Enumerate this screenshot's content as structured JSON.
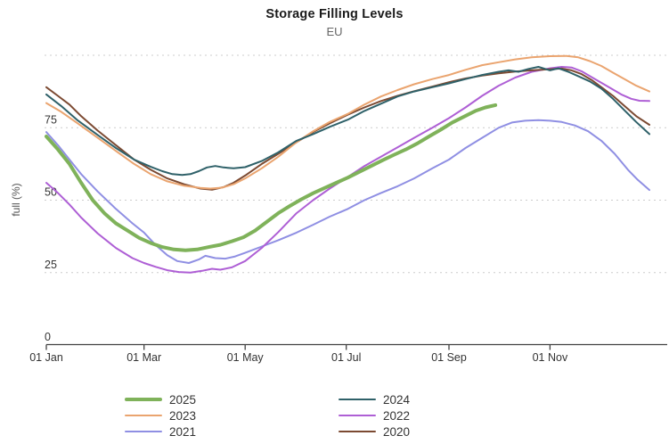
{
  "header": {
    "title": "Storage Filling Levels",
    "subtitle": "EU",
    "menu_icon": "hamburger-menu-icon"
  },
  "colors": {
    "background": "#ffffff",
    "title_text": "#1a1a1a",
    "subtitle_text": "#666666",
    "axis_text": "#333333",
    "axis_line": "#424242",
    "gridline": "#cccccc",
    "menu_icon": "#606060"
  },
  "chart_data": {
    "type": "line",
    "title": "Storage Filling Levels",
    "subtitle": "EU",
    "xlabel": "",
    "ylabel": "full (%)",
    "x_unit": "day_of_year",
    "ylim": [
      0,
      105
    ],
    "yticks": [
      0,
      25,
      50,
      75
    ],
    "gridline_values": [
      25,
      50,
      75,
      100
    ],
    "grid_style": "dotted",
    "xtick_labels": [
      "01 Jan",
      "01 Mar",
      "01 May",
      "01 Jul",
      "01 Sep",
      "01 Nov"
    ],
    "xtick_days": [
      1,
      60,
      121,
      182,
      244,
      305
    ],
    "legend_position": "bottom",
    "legend_columns": [
      [
        "2025",
        "2023",
        "2021"
      ],
      [
        "2024",
        "2022",
        "2020"
      ]
    ],
    "series": [
      {
        "name": "2021",
        "color": "#8f8fe3",
        "line_width": 2,
        "points": [
          [
            1,
            73.5
          ],
          [
            8,
            69
          ],
          [
            15,
            64
          ],
          [
            22,
            59
          ],
          [
            32,
            53
          ],
          [
            43,
            47
          ],
          [
            53,
            42
          ],
          [
            60,
            38.8
          ],
          [
            67,
            34.5
          ],
          [
            74,
            31
          ],
          [
            80,
            29
          ],
          [
            87,
            28.3
          ],
          [
            93,
            29.5
          ],
          [
            97,
            30.8
          ],
          [
            103,
            30
          ],
          [
            109,
            29.8
          ],
          [
            115,
            30.6
          ],
          [
            121,
            31.8
          ],
          [
            131,
            34
          ],
          [
            141,
            36.2
          ],
          [
            152,
            38.8
          ],
          [
            162,
            41.5
          ],
          [
            172,
            44.3
          ],
          [
            183,
            47
          ],
          [
            193,
            50
          ],
          [
            203,
            52.5
          ],
          [
            213,
            54.8
          ],
          [
            223,
            57.5
          ],
          [
            234,
            61
          ],
          [
            244,
            64
          ],
          [
            254,
            68
          ],
          [
            264,
            71.5
          ],
          [
            274,
            75
          ],
          [
            282,
            76.8
          ],
          [
            290,
            77.4
          ],
          [
            298,
            77.6
          ],
          [
            305,
            77.4
          ],
          [
            312,
            77
          ],
          [
            320,
            75.8
          ],
          [
            328,
            73.8
          ],
          [
            336,
            70.5
          ],
          [
            344,
            66
          ],
          [
            352,
            60.5
          ],
          [
            358,
            57
          ],
          [
            365,
            53.5
          ]
        ]
      },
      {
        "name": "2022",
        "color": "#ae5fd5",
        "line_width": 2,
        "points": [
          [
            1,
            56
          ],
          [
            8,
            52.5
          ],
          [
            15,
            48.5
          ],
          [
            22,
            44
          ],
          [
            32,
            38.5
          ],
          [
            43,
            33.5
          ],
          [
            53,
            30
          ],
          [
            60,
            28.3
          ],
          [
            67,
            27
          ],
          [
            74,
            25.8
          ],
          [
            81,
            25.2
          ],
          [
            88,
            25
          ],
          [
            95,
            25.6
          ],
          [
            101,
            26.3
          ],
          [
            106,
            26
          ],
          [
            113,
            26.8
          ],
          [
            121,
            29
          ],
          [
            131,
            33.5
          ],
          [
            141,
            39
          ],
          [
            152,
            45.5
          ],
          [
            162,
            50
          ],
          [
            172,
            54
          ],
          [
            183,
            58
          ],
          [
            193,
            61.8
          ],
          [
            203,
            65
          ],
          [
            213,
            68.2
          ],
          [
            223,
            71.5
          ],
          [
            234,
            75
          ],
          [
            244,
            78.3
          ],
          [
            254,
            82
          ],
          [
            264,
            86
          ],
          [
            274,
            89.5
          ],
          [
            284,
            92.3
          ],
          [
            294,
            94.3
          ],
          [
            305,
            95.5
          ],
          [
            312,
            96
          ],
          [
            318,
            95.8
          ],
          [
            324,
            94.5
          ],
          [
            330,
            92.5
          ],
          [
            336,
            90.5
          ],
          [
            342,
            88.5
          ],
          [
            348,
            86.5
          ],
          [
            354,
            85
          ],
          [
            359,
            84.3
          ],
          [
            365,
            84.2
          ]
        ]
      },
      {
        "name": "2020",
        "color": "#7c4a32",
        "line_width": 2,
        "points": [
          [
            1,
            89
          ],
          [
            8,
            86
          ],
          [
            15,
            83
          ],
          [
            22,
            79
          ],
          [
            32,
            74
          ],
          [
            43,
            69
          ],
          [
            54,
            64
          ],
          [
            64,
            60.5
          ],
          [
            74,
            57.5
          ],
          [
            84,
            55.5
          ],
          [
            94,
            54
          ],
          [
            101,
            53.6
          ],
          [
            108,
            54.5
          ],
          [
            114,
            56
          ],
          [
            121,
            58.5
          ],
          [
            131,
            62.5
          ],
          [
            141,
            66
          ],
          [
            152,
            70
          ],
          [
            162,
            73.5
          ],
          [
            172,
            76.5
          ],
          [
            183,
            79.5
          ],
          [
            193,
            82
          ],
          [
            203,
            84.2
          ],
          [
            213,
            86
          ],
          [
            223,
            87.6
          ],
          [
            234,
            89.2
          ],
          [
            244,
            90.7
          ],
          [
            254,
            92
          ],
          [
            264,
            93
          ],
          [
            274,
            93.8
          ],
          [
            284,
            94.4
          ],
          [
            294,
            94.8
          ],
          [
            305,
            95.2
          ],
          [
            312,
            95.4
          ],
          [
            318,
            94.8
          ],
          [
            324,
            93.5
          ],
          [
            330,
            91.5
          ],
          [
            336,
            89
          ],
          [
            343,
            86
          ],
          [
            350,
            82.5
          ],
          [
            357,
            79
          ],
          [
            365,
            76
          ]
        ]
      },
      {
        "name": "2023",
        "color": "#eaa46f",
        "line_width": 2,
        "points": [
          [
            1,
            83.5
          ],
          [
            10,
            80.5
          ],
          [
            20,
            76.5
          ],
          [
            32,
            71.5
          ],
          [
            43,
            67
          ],
          [
            54,
            62.5
          ],
          [
            64,
            59
          ],
          [
            74,
            56.5
          ],
          [
            84,
            55
          ],
          [
            94,
            54.2
          ],
          [
            100,
            54
          ],
          [
            107,
            54.3
          ],
          [
            114,
            55.5
          ],
          [
            121,
            57.5
          ],
          [
            131,
            61
          ],
          [
            141,
            65
          ],
          [
            152,
            70
          ],
          [
            162,
            73.8
          ],
          [
            172,
            77
          ],
          [
            183,
            79.8
          ],
          [
            193,
            83
          ],
          [
            203,
            85.8
          ],
          [
            213,
            88
          ],
          [
            223,
            90
          ],
          [
            234,
            91.8
          ],
          [
            244,
            93.2
          ],
          [
            254,
            95
          ],
          [
            264,
            96.6
          ],
          [
            274,
            97.6
          ],
          [
            284,
            98.6
          ],
          [
            294,
            99.3
          ],
          [
            305,
            99.7
          ],
          [
            315,
            99.8
          ],
          [
            322,
            99.3
          ],
          [
            329,
            98
          ],
          [
            336,
            96.3
          ],
          [
            343,
            94
          ],
          [
            350,
            91.8
          ],
          [
            357,
            89.5
          ],
          [
            365,
            87.5
          ]
        ]
      },
      {
        "name": "2024",
        "color": "#2f6169",
        "line_width": 2,
        "points": [
          [
            1,
            86.5
          ],
          [
            10,
            82.5
          ],
          [
            20,
            77.5
          ],
          [
            32,
            72.5
          ],
          [
            43,
            68
          ],
          [
            54,
            64
          ],
          [
            64,
            61.5
          ],
          [
            71,
            60
          ],
          [
            77,
            59
          ],
          [
            83,
            58.7
          ],
          [
            88,
            59
          ],
          [
            93,
            60
          ],
          [
            98,
            61.3
          ],
          [
            103,
            61.8
          ],
          [
            108,
            61.3
          ],
          [
            114,
            61
          ],
          [
            121,
            61.4
          ],
          [
            131,
            63.5
          ],
          [
            141,
            66.5
          ],
          [
            152,
            70.5
          ],
          [
            162,
            72.8
          ],
          [
            172,
            75.3
          ],
          [
            183,
            77.8
          ],
          [
            193,
            80.8
          ],
          [
            203,
            83.3
          ],
          [
            213,
            85.8
          ],
          [
            223,
            87.5
          ],
          [
            234,
            89
          ],
          [
            244,
            90.3
          ],
          [
            254,
            91.8
          ],
          [
            264,
            93.2
          ],
          [
            274,
            94.3
          ],
          [
            280,
            94.8
          ],
          [
            286,
            94.3
          ],
          [
            292,
            95.3
          ],
          [
            298,
            96
          ],
          [
            305,
            94.8
          ],
          [
            310,
            95.5
          ],
          [
            316,
            94.3
          ],
          [
            322,
            92.8
          ],
          [
            329,
            91
          ],
          [
            336,
            88.5
          ],
          [
            343,
            85
          ],
          [
            350,
            81
          ],
          [
            357,
            77
          ],
          [
            365,
            72.8
          ]
        ]
      },
      {
        "name": "2025",
        "color": "#7fb25a",
        "line_width": 4,
        "points": [
          [
            1,
            72
          ],
          [
            8,
            67.5
          ],
          [
            15,
            62.5
          ],
          [
            22,
            56
          ],
          [
            29,
            50
          ],
          [
            36,
            45.5
          ],
          [
            43,
            42
          ],
          [
            50,
            39.5
          ],
          [
            57,
            37
          ],
          [
            64,
            35.2
          ],
          [
            71,
            33.8
          ],
          [
            78,
            33
          ],
          [
            85,
            32.7
          ],
          [
            92,
            33
          ],
          [
            99,
            33.8
          ],
          [
            106,
            34.6
          ],
          [
            113,
            35.8
          ],
          [
            120,
            37.2
          ],
          [
            127,
            39.5
          ],
          [
            134,
            42.5
          ],
          [
            141,
            45.5
          ],
          [
            148,
            48
          ],
          [
            155,
            50.3
          ],
          [
            162,
            52.4
          ],
          [
            169,
            54.2
          ],
          [
            176,
            56
          ],
          [
            183,
            57.8
          ],
          [
            190,
            59.8
          ],
          [
            197,
            61.8
          ],
          [
            204,
            63.8
          ],
          [
            211,
            65.7
          ],
          [
            218,
            67.5
          ],
          [
            225,
            69.6
          ],
          [
            232,
            72
          ],
          [
            239,
            74.3
          ],
          [
            246,
            76.8
          ],
          [
            253,
            78.8
          ],
          [
            260,
            80.8
          ],
          [
            266,
            82
          ],
          [
            272,
            82.8
          ]
        ]
      }
    ]
  }
}
